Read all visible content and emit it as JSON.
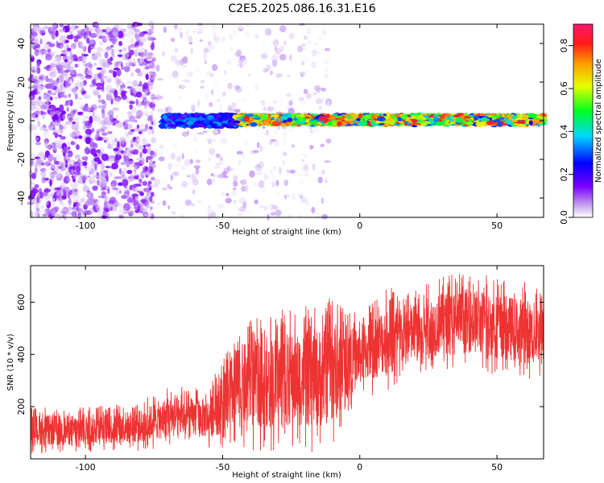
{
  "title": "C2E5.2025.086.16.31.E16",
  "chart_data": [
    {
      "type": "heatmap",
      "xlabel": "Height of straight line (km)",
      "ylabel": "Frequency (Hz)",
      "xlim": [
        -120,
        67
      ],
      "ylim": [
        -50,
        50
      ],
      "xticks": [
        -100,
        -50,
        0,
        50
      ],
      "yticks": [
        -40,
        -20,
        0,
        20,
        40
      ],
      "colorbar": {
        "label": "Normalized spectral amplitude",
        "range": [
          0.0,
          0.9
        ],
        "ticks": [
          0.0,
          0.2,
          0.4,
          0.6,
          0.8
        ],
        "colormap": "rainbow (purple → blue → cyan → green → yellow → red → magenta)"
      },
      "regions": [
        {
          "x": [
            -120,
            -75
          ],
          "freq": [
            -50,
            50
          ],
          "amplitude": [
            0.0,
            0.15
          ]
        },
        {
          "x": [
            -75,
            -10
          ],
          "freq": [
            -50,
            50
          ],
          "amplitude": [
            0.0,
            0.08
          ]
        },
        {
          "x": [
            -72,
            -45
          ],
          "freq": [
            -3,
            3
          ],
          "amplitude": [
            0.15,
            0.35
          ]
        },
        {
          "x": [
            -45,
            67
          ],
          "freq": [
            -2,
            3
          ],
          "amplitude": [
            0.2,
            0.85
          ]
        }
      ]
    },
    {
      "type": "line",
      "xlabel": "Height of straight line (km)",
      "ylabel": "SNR (10 * v/v)",
      "xlim": [
        -120,
        67
      ],
      "ylim": [
        0,
        740
      ],
      "xticks": [
        -100,
        -50,
        0,
        50
      ],
      "yticks": [
        200,
        400,
        600
      ],
      "color": "#ee3333",
      "envelope": [
        {
          "x": -120,
          "low": 20,
          "high": 200
        },
        {
          "x": -100,
          "low": 20,
          "high": 200
        },
        {
          "x": -80,
          "low": 30,
          "high": 220
        },
        {
          "x": -70,
          "low": 40,
          "high": 280
        },
        {
          "x": -55,
          "low": 40,
          "high": 270
        },
        {
          "x": -45,
          "low": 30,
          "high": 520
        },
        {
          "x": -35,
          "low": 30,
          "high": 560
        },
        {
          "x": -25,
          "low": 30,
          "high": 580
        },
        {
          "x": -15,
          "low": 20,
          "high": 600
        },
        {
          "x": -10,
          "low": 30,
          "high": 640
        },
        {
          "x": -5,
          "low": 150,
          "high": 560
        },
        {
          "x": 0,
          "low": 220,
          "high": 580
        },
        {
          "x": 10,
          "low": 260,
          "high": 660
        },
        {
          "x": 20,
          "low": 300,
          "high": 660
        },
        {
          "x": 30,
          "low": 340,
          "high": 700
        },
        {
          "x": 40,
          "low": 340,
          "high": 720
        },
        {
          "x": 50,
          "low": 320,
          "high": 700
        },
        {
          "x": 60,
          "low": 300,
          "high": 680
        },
        {
          "x": 67,
          "low": 310,
          "high": 650
        }
      ]
    }
  ]
}
